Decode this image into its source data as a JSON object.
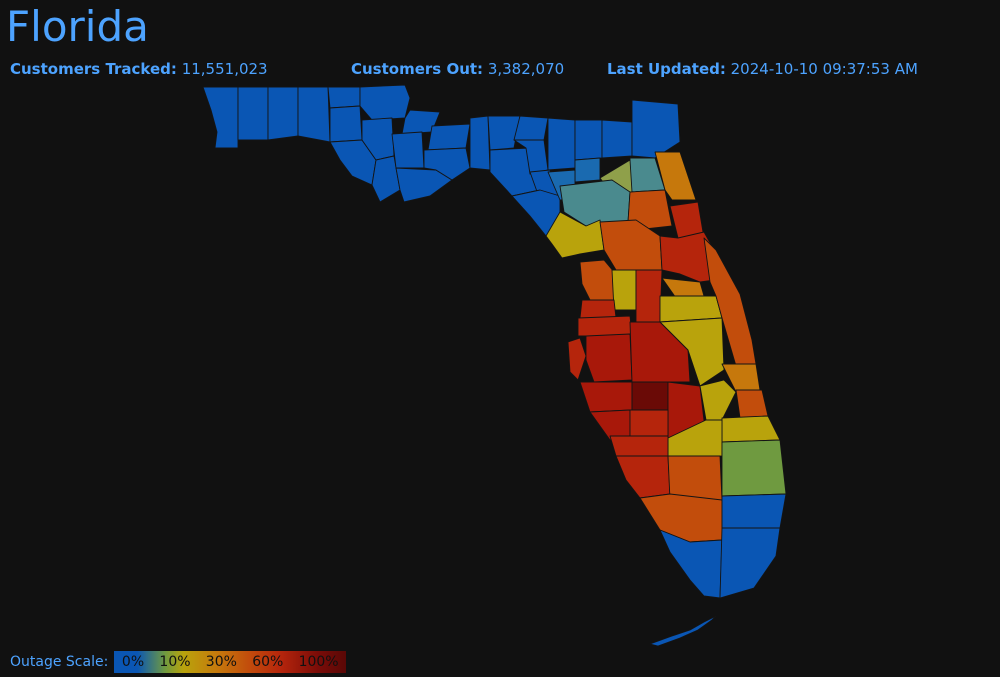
{
  "title": "Florida",
  "stats": {
    "tracked_label": "Customers Tracked:",
    "tracked_value": "11,551,023",
    "out_label": "Customers Out:",
    "out_value": "3,382,070",
    "updated_label": "Last Updated:",
    "updated_value": "2024-10-10 09:37:53 AM"
  },
  "legend": {
    "label": "Outage Scale:",
    "ticks": [
      "0%",
      "10%",
      "30%",
      "60%",
      "100%"
    ]
  },
  "colors": {
    "background": "#111111",
    "accent": "#4da3ff",
    "outage_0": "#0a56b4",
    "outage_10": "#b9a30c",
    "outage_30": "#c6780c",
    "outage_60": "#b5250c",
    "outage_100": "#5a0806"
  }
}
